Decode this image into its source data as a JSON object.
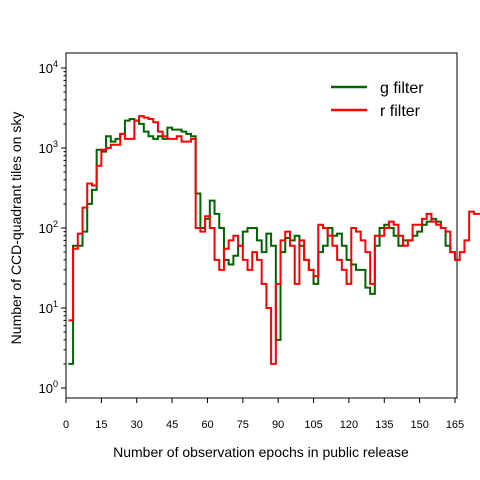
{
  "chart_data": {
    "type": "histogram-step",
    "xlabel": "Number of observation epochs in public release",
    "ylabel": "Number of CCD-quadrant tiles on sky",
    "y_scale": "log",
    "xlim": [
      0,
      165
    ],
    "ylim": [
      0.7,
      14000
    ],
    "x_ticks": [
      "0",
      "15",
      "30",
      "45",
      "60",
      "75",
      "90",
      "105",
      "120",
      "135",
      "150",
      "165"
    ],
    "y_ticks": [
      "10^0",
      "10^1",
      "10^2",
      "10^3",
      "10^4"
    ],
    "legend_position": "top-right",
    "bin_start": 1,
    "bin_width": 2,
    "series": [
      {
        "name": "g filter",
        "color": "#006400",
        "values": [
          2,
          60,
          60,
          90,
          200,
          300,
          950,
          900,
          1400,
          1200,
          1300,
          1500,
          2200,
          2300,
          2200,
          2000,
          1600,
          1400,
          1300,
          1400,
          1300,
          1800,
          1700,
          1700,
          1600,
          1500,
          1400,
          270,
          100,
          130,
          220,
          150,
          100,
          40,
          35,
          45,
          60,
          90,
          100,
          100,
          70,
          50,
          85,
          60,
          4,
          50,
          75,
          70,
          80,
          60,
          40,
          30,
          20,
          50,
          60,
          100,
          80,
          85,
          60,
          40,
          35,
          30,
          30,
          18,
          15,
          60,
          100,
          110,
          100,
          80,
          60,
          70,
          70,
          80,
          90,
          110,
          120,
          130,
          120,
          100,
          60,
          50,
          40
        ]
      },
      {
        "name": "r filter",
        "color": "#ff0000",
        "values": [
          7,
          55,
          85,
          180,
          360,
          340,
          600,
          950,
          1000,
          1100,
          1100,
          1500,
          1300,
          1300,
          2200,
          2500,
          2400,
          2300,
          2100,
          1600,
          1400,
          1300,
          1300,
          1400,
          1200,
          1200,
          1300,
          100,
          90,
          140,
          100,
          40,
          30,
          55,
          70,
          80,
          60,
          40,
          30,
          50,
          40,
          20,
          10,
          2,
          20,
          70,
          90,
          60,
          20,
          70,
          40,
          30,
          25,
          110,
          100,
          80,
          60,
          40,
          30,
          20,
          100,
          90,
          70,
          50,
          20,
          80,
          80,
          100,
          120,
          110,
          80,
          60,
          70,
          110,
          110,
          130,
          150,
          120,
          110,
          100,
          90,
          50,
          40,
          50,
          70,
          160,
          150,
          150,
          140,
          90,
          60,
          50,
          3
        ]
      }
    ]
  }
}
